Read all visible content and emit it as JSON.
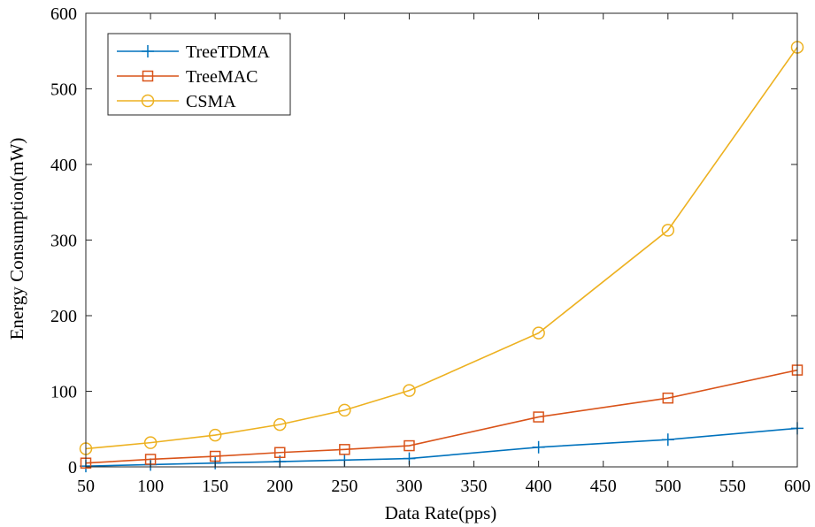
{
  "chart_data": {
    "type": "line",
    "xlabel": "Data Rate(pps)",
    "ylabel": "Energy Consumption(mW)",
    "xlim": [
      50,
      600
    ],
    "ylim": [
      0,
      600
    ],
    "x": [
      50,
      100,
      150,
      200,
      250,
      300,
      400,
      500,
      600
    ],
    "xticks": [
      50,
      100,
      150,
      200,
      250,
      300,
      350,
      400,
      450,
      500,
      550,
      600
    ],
    "yticks": [
      0,
      100,
      200,
      300,
      400,
      500,
      600
    ],
    "grid": false,
    "legend_position": "top-left",
    "series": [
      {
        "name": "TreeTDMA",
        "marker": "plus",
        "color": "#0072BD",
        "values": [
          1,
          3,
          5,
          7,
          9,
          11,
          26,
          36,
          51
        ]
      },
      {
        "name": "TreeMAC",
        "marker": "square",
        "color": "#D95319",
        "values": [
          5,
          10,
          14,
          19,
          23,
          28,
          66,
          91,
          128
        ]
      },
      {
        "name": "CSMA",
        "marker": "circle",
        "color": "#EDB120",
        "values": [
          24,
          32,
          42,
          56,
          75,
          101,
          177,
          313,
          555
        ]
      }
    ]
  }
}
